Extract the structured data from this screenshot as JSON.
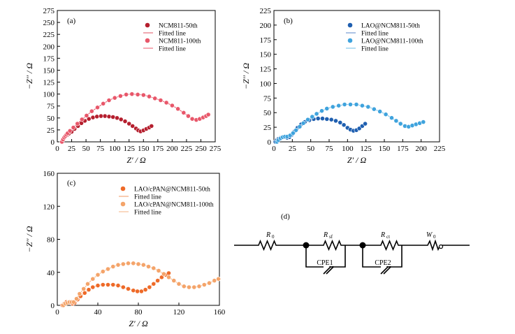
{
  "chart_data": [
    {
      "type": "scatter",
      "panel_label": "(a)",
      "xlabel": "Z′ / Ω",
      "ylabel": "−Z′′ / Ω",
      "xlim": [
        0,
        275
      ],
      "ylim": [
        0,
        275
      ],
      "xticks": [
        0,
        25,
        50,
        75,
        100,
        125,
        150,
        175,
        200,
        225,
        250,
        275
      ],
      "yticks": [
        0,
        25,
        50,
        75,
        100,
        125,
        150,
        175,
        200,
        225,
        250,
        275
      ],
      "legend_position": "top-right",
      "series": [
        {
          "name": "NCM811-50th",
          "fit_name": "Fitted line",
          "color": "#b51f2e",
          "fit_color": "#e05060",
          "x": [
            8,
            10,
            12,
            14,
            17,
            20,
            25,
            30,
            36,
            42,
            48,
            55,
            62,
            69,
            76,
            83,
            90,
            97,
            104,
            111,
            118,
            125,
            131,
            137,
            141,
            145,
            150,
            155,
            160,
            164
          ],
          "y": [
            0,
            4,
            8,
            11,
            14,
            17,
            21,
            27,
            33,
            39,
            44,
            48,
            51,
            53,
            54,
            54,
            53,
            52,
            50,
            47,
            43,
            38,
            33,
            28,
            24,
            22,
            24,
            27,
            30,
            33
          ]
        },
        {
          "name": "NCM811-100th",
          "fit_name": "Fitted line",
          "color": "#e8576a",
          "fit_color": "#e8576a",
          "x": [
            8,
            10,
            12,
            14,
            16,
            18,
            22,
            28,
            35,
            43,
            51,
            60,
            70,
            80,
            90,
            100,
            110,
            120,
            130,
            140,
            150,
            160,
            170,
            180,
            190,
            200,
            210,
            220,
            228,
            235,
            242,
            248,
            254,
            259,
            263
          ],
          "y": [
            0,
            5,
            9,
            12,
            15,
            18,
            23,
            30,
            38,
            47,
            55,
            64,
            72,
            80,
            87,
            92,
            96,
            99,
            100,
            99,
            98,
            95,
            91,
            87,
            82,
            76,
            69,
            61,
            54,
            48,
            46,
            48,
            51,
            54,
            57
          ]
        }
      ]
    },
    {
      "type": "scatter",
      "panel_label": "(b)",
      "xlabel": "Z′ / Ω",
      "ylabel": "−Z′′ / Ω",
      "xlim": [
        0,
        225
      ],
      "ylim": [
        0,
        225
      ],
      "xticks": [
        0,
        25,
        50,
        75,
        100,
        125,
        150,
        175,
        200,
        225
      ],
      "yticks": [
        0,
        25,
        50,
        75,
        100,
        125,
        150,
        175,
        200,
        225
      ],
      "legend_position": "top-right",
      "series": [
        {
          "name": "LAO@NCM811-50th",
          "fit_name": "Fitted line",
          "color": "#1f5fb0",
          "fit_color": "#5a86c8",
          "x": [
            2,
            4,
            6,
            9,
            12,
            15,
            18,
            21,
            24,
            28,
            32,
            37,
            42,
            48,
            54,
            60,
            66,
            72,
            78,
            84,
            90,
            95,
            100,
            104,
            108,
            112,
            116,
            120,
            124
          ],
          "y": [
            0,
            3,
            5,
            7,
            8,
            8,
            7,
            8,
            12,
            18,
            24,
            30,
            34,
            37,
            39,
            40,
            40,
            39,
            38,
            36,
            33,
            29,
            24,
            21,
            19,
            20,
            23,
            27,
            31
          ]
        },
        {
          "name": "LAO@NCM811-100th",
          "fit_name": "Fitted line",
          "color": "#3fa3dd",
          "fit_color": "#6cbde6",
          "x": [
            4,
            6,
            9,
            12,
            15,
            18,
            22,
            26,
            30,
            35,
            40,
            46,
            52,
            58,
            65,
            72,
            80,
            88,
            96,
            104,
            112,
            120,
            128,
            136,
            144,
            152,
            160,
            166,
            172,
            178,
            183,
            188,
            193,
            198,
            203
          ],
          "y": [
            0,
            3,
            6,
            8,
            9,
            9,
            11,
            15,
            20,
            26,
            32,
            38,
            43,
            48,
            53,
            57,
            60,
            62,
            64,
            64,
            64,
            62,
            60,
            56,
            52,
            47,
            41,
            36,
            31,
            27,
            26,
            28,
            30,
            32,
            34
          ]
        }
      ]
    },
    {
      "type": "scatter",
      "panel_label": "(c)",
      "xlabel": "Z′ / Ω",
      "ylabel": "−Z′′ / Ω",
      "xlim": [
        0,
        160
      ],
      "ylim": [
        0,
        160
      ],
      "xticks": [
        0,
        40,
        80,
        120,
        160
      ],
      "yticks": [
        0,
        40,
        80,
        120,
        160
      ],
      "legend_position": "top-left",
      "series": [
        {
          "name": "LAO/cPAN@NCM811-50th",
          "fit_name": "Fitted line",
          "color": "#ee6a28",
          "fit_color": "#f19a60",
          "x": [
            5,
            7,
            9,
            11,
            13,
            15,
            17,
            20,
            23,
            27,
            31,
            35,
            40,
            45,
            50,
            55,
            60,
            65,
            70,
            75,
            79,
            83,
            87,
            91,
            95,
            99,
            103,
            107,
            110
          ],
          "y": [
            0,
            2,
            4,
            4,
            3,
            2,
            3,
            7,
            11,
            15,
            19,
            22,
            24,
            25,
            25,
            25,
            24,
            22,
            20,
            18,
            17,
            17,
            19,
            22,
            26,
            30,
            34,
            37,
            39
          ]
        },
        {
          "name": "LAO/cPAN@NCM811-100th",
          "fit_name": "Fitted line",
          "color": "#f4a46a",
          "fit_color": "#f4b383",
          "x": [
            6,
            8,
            10,
            12,
            14,
            16,
            19,
            22,
            26,
            30,
            35,
            40,
            45,
            50,
            55,
            60,
            65,
            70,
            75,
            80,
            85,
            90,
            95,
            100,
            105,
            110,
            115,
            120,
            125,
            130,
            135,
            140,
            145,
            150,
            155,
            159
          ],
          "y": [
            0,
            2,
            3,
            4,
            4,
            4,
            8,
            14,
            20,
            26,
            32,
            37,
            41,
            44,
            47,
            49,
            50,
            51,
            51,
            50,
            49,
            47,
            45,
            42,
            38,
            34,
            30,
            26,
            23,
            22,
            22,
            23,
            25,
            27,
            30,
            32
          ]
        }
      ]
    }
  ],
  "circuit": {
    "panel_label": "(d)",
    "elements": [
      {
        "symbol": "R",
        "sub": "0"
      },
      {
        "symbol": "R",
        "sub": "sf"
      },
      {
        "symbol": "R",
        "sub": "ct"
      },
      {
        "symbol": "W",
        "sub": "0"
      }
    ],
    "cpe_labels": [
      "CPE1",
      "CPE2"
    ]
  }
}
